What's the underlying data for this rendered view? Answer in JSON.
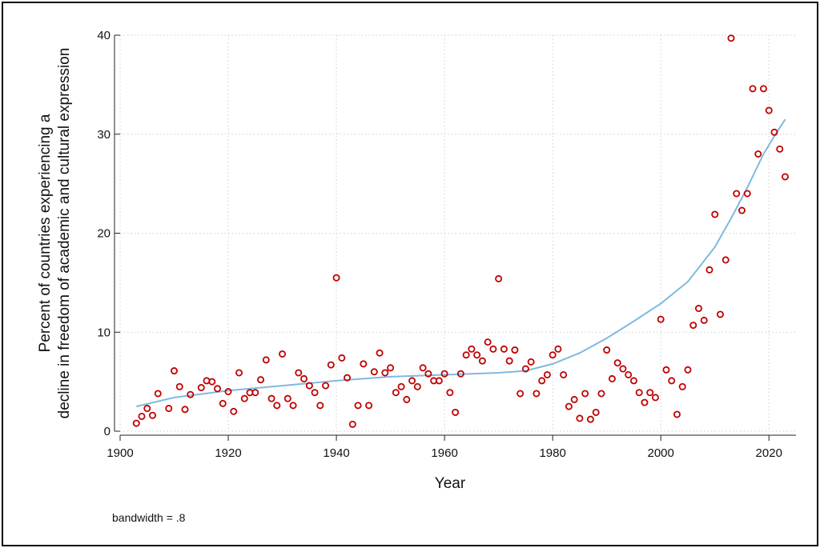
{
  "chart_data": {
    "type": "scatter",
    "xlabel": "Year",
    "ylabel_lines": [
      "Percent of countries experiencing a",
      "decline in freedom of academic and cultural expression"
    ],
    "xlim": [
      1900,
      2025
    ],
    "ylim": [
      0,
      40
    ],
    "xticks": [
      1900,
      1920,
      1940,
      1960,
      1980,
      2000,
      2020
    ],
    "yticks": [
      0,
      10,
      20,
      30,
      40
    ],
    "grid": true,
    "note": "bandwidth = .8",
    "colors": {
      "points": "#c00000",
      "fit": "#7fb9e0",
      "grid": "#cfcfcf"
    },
    "series": [
      {
        "kind": "points",
        "x": [
          1903,
          1904,
          1905,
          1906,
          1907,
          1909,
          1910,
          1911,
          1912,
          1913,
          1915,
          1916,
          1917,
          1918,
          1919,
          1920,
          1921,
          1922,
          1923,
          1924,
          1925,
          1926,
          1927,
          1928,
          1929,
          1930,
          1931,
          1932,
          1933,
          1934,
          1935,
          1936,
          1937,
          1938,
          1939,
          1940,
          1941,
          1942,
          1943,
          1944,
          1945,
          1946,
          1947,
          1948,
          1949,
          1950,
          1951,
          1952,
          1953,
          1954,
          1955,
          1956,
          1957,
          1958,
          1959,
          1960,
          1961,
          1962,
          1963,
          1964,
          1965,
          1966,
          1967,
          1968,
          1969,
          1970,
          1971,
          1972,
          1973,
          1974,
          1975,
          1976,
          1977,
          1978,
          1979,
          1980,
          1981,
          1982,
          1983,
          1984,
          1985,
          1986,
          1987,
          1988,
          1989,
          1990,
          1991,
          1992,
          1993,
          1994,
          1995,
          1996,
          1997,
          1998,
          1999,
          2000,
          2001,
          2002,
          2003,
          2004,
          2005,
          2006,
          2007,
          2008,
          2009,
          2010,
          2011,
          2012,
          2013,
          2014,
          2015,
          2016,
          2017,
          2018,
          2019,
          2020,
          2021,
          2022,
          2023
        ],
        "y": [
          0.8,
          1.5,
          2.3,
          1.6,
          3.8,
          2.3,
          6.1,
          4.5,
          2.2,
          3.7,
          4.4,
          5.1,
          5.0,
          4.3,
          2.8,
          4.0,
          2.0,
          5.9,
          3.3,
          3.9,
          3.9,
          5.2,
          7.2,
          3.3,
          2.6,
          7.8,
          3.3,
          2.6,
          5.9,
          5.3,
          4.6,
          3.9,
          2.6,
          4.6,
          6.7,
          15.5,
          7.4,
          5.4,
          0.7,
          2.6,
          6.8,
          2.6,
          6.0,
          7.9,
          5.9,
          6.4,
          3.9,
          4.5,
          3.2,
          5.1,
          4.5,
          6.4,
          5.8,
          5.1,
          5.1,
          5.8,
          3.9,
          1.9,
          5.8,
          7.7,
          8.3,
          7.7,
          7.1,
          9.0,
          8.3,
          15.4,
          8.3,
          7.1,
          8.2,
          3.8,
          6.3,
          7.0,
          3.8,
          5.1,
          5.7,
          7.7,
          8.3,
          5.7,
          2.5,
          3.2,
          1.3,
          3.8,
          1.2,
          1.9,
          3.8,
          8.2,
          5.3,
          6.9,
          6.3,
          5.7,
          5.1,
          3.9,
          2.9,
          3.9,
          3.4,
          11.3,
          6.2,
          5.1,
          1.7,
          4.5,
          6.2,
          10.7,
          12.4,
          11.2,
          16.3,
          21.9,
          11.8,
          17.3,
          39.7,
          24.0,
          22.3,
          24.0,
          34.6,
          28.0,
          34.6,
          32.4,
          30.2,
          28.5,
          25.7
        ]
      },
      {
        "kind": "fit",
        "x": [
          1903,
          1910,
          1920,
          1930,
          1940,
          1950,
          1960,
          1970,
          1975,
          1980,
          1985,
          1990,
          1995,
          2000,
          2005,
          2010,
          2013,
          2016,
          2019,
          2021,
          2023
        ],
        "y": [
          2.5,
          3.4,
          4.1,
          4.6,
          5.1,
          5.5,
          5.7,
          5.9,
          6.1,
          6.8,
          7.9,
          9.4,
          11.1,
          12.9,
          15.1,
          18.6,
          21.5,
          24.6,
          28.0,
          29.8,
          31.5
        ]
      }
    ]
  }
}
